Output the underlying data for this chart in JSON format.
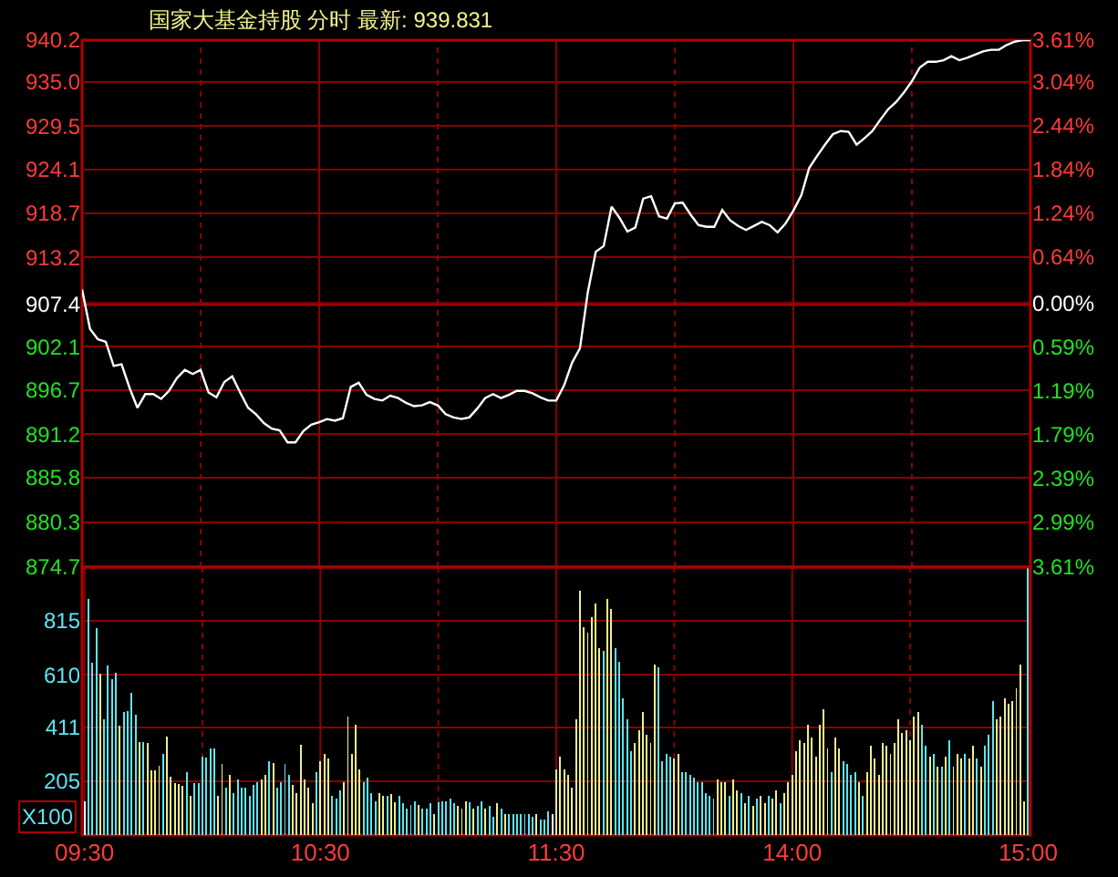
{
  "chart_data": [
    {
      "type": "line",
      "title": "国家大基金持股 分时 最新: 939.831",
      "color": "#ffffff",
      "categories": [
        null,
        null,
        null,
        null,
        null,
        null,
        null,
        null,
        null,
        null,
        null,
        null,
        null,
        null,
        null,
        null,
        null,
        null,
        null,
        null,
        null,
        null,
        null,
        null,
        null,
        null,
        null,
        null,
        null,
        null,
        null,
        null,
        null,
        null,
        null,
        null,
        null,
        null,
        null,
        null,
        null,
        null,
        null,
        null,
        null,
        null,
        null,
        null,
        null,
        null,
        null,
        null,
        null,
        null,
        null,
        null,
        null,
        null,
        null,
        null,
        null,
        null,
        null,
        null,
        null,
        null,
        null,
        null,
        null,
        null,
        null,
        null,
        null,
        null,
        null,
        null,
        null,
        null,
        null,
        null,
        null,
        null,
        null,
        null,
        null,
        null,
        null,
        null,
        null,
        null,
        null,
        null,
        null,
        null,
        null,
        null,
        null,
        null,
        null,
        null,
        null,
        null,
        null,
        null,
        null,
        null,
        null,
        null,
        null,
        null,
        null,
        null,
        null,
        null,
        null,
        null,
        null,
        null,
        null,
        null,
        null
      ],
      "values": [
        909.2,
        904.3,
        903.0,
        902.7,
        899.7,
        899.9,
        897.0,
        894.5,
        896.2,
        896.2,
        895.6,
        896.6,
        898.2,
        899.2,
        898.7,
        899.2,
        896.4,
        895.8,
        897.7,
        898.4,
        896.4,
        894.5,
        893.7,
        892.6,
        891.9,
        891.7,
        890.2,
        890.2,
        891.6,
        892.4,
        892.7,
        893.1,
        892.9,
        893.2,
        897.1,
        897.6,
        896.1,
        895.6,
        895.4,
        896.0,
        895.7,
        895.1,
        894.7,
        894.8,
        895.2,
        894.8,
        893.7,
        893.3,
        893.1,
        893.3,
        894.4,
        895.7,
        896.2,
        895.7,
        896.1,
        896.6,
        896.6,
        896.3,
        895.8,
        895.4,
        895.4,
        897.3,
        900.1,
        901.9,
        908.9,
        913.9,
        914.6,
        919.5,
        918.1,
        916.4,
        916.9,
        920.5,
        920.8,
        918.3,
        918.0,
        919.9,
        920.0,
        918.5,
        917.2,
        917.0,
        917.0,
        919.1,
        917.8,
        917.1,
        916.6,
        917.1,
        917.6,
        917.2,
        916.3,
        917.4,
        919.0,
        920.9,
        924.3,
        925.8,
        927.2,
        928.5,
        928.9,
        928.8,
        927.2,
        928.0,
        928.9,
        930.3,
        931.6,
        932.5,
        933.7,
        935.1,
        936.8,
        937.5,
        937.5,
        937.7,
        938.2,
        937.7,
        938.0,
        938.4,
        938.8,
        939.0,
        939.0,
        939.6,
        940.0,
        940.2,
        940.2
      ],
      "ylim": [
        874.7,
        940.2
      ],
      "yticks": [
        {
          "value": 874.7,
          "label": "874.7"
        },
        {
          "value": 880.3,
          "label": "880.3"
        },
        {
          "value": 885.8,
          "label": "885.8"
        },
        {
          "value": 891.2,
          "label": "891.2"
        },
        {
          "value": 896.7,
          "label": "896.7"
        },
        {
          "value": 902.1,
          "label": "902.1"
        },
        {
          "value": 907.4,
          "label": "907.4"
        },
        {
          "value": 913.2,
          "label": "913.2"
        },
        {
          "value": 918.7,
          "label": "918.7"
        },
        {
          "value": 924.1,
          "label": "924.1"
        },
        {
          "value": 929.5,
          "label": "929.5"
        },
        {
          "value": 935.0,
          "label": "935.0"
        },
        {
          "value": 940.2,
          "label": "940.2"
        }
      ],
      "y2lim": [
        -3.61,
        3.61
      ],
      "y2ticks": [
        {
          "value": -3.61,
          "label": "3.61%"
        },
        {
          "value": -2.99,
          "label": "2.99%"
        },
        {
          "value": -2.39,
          "label": "2.39%"
        },
        {
          "value": -1.79,
          "label": "1.79%"
        },
        {
          "value": -1.19,
          "label": "1.19%"
        },
        {
          "value": -0.59,
          "label": "0.59%"
        },
        {
          "value": 0,
          "label": "0.00%"
        },
        {
          "value": 0.64,
          "label": "0.64%"
        },
        {
          "value": 1.24,
          "label": "1.24%"
        },
        {
          "value": 1.84,
          "label": "1.84%"
        },
        {
          "value": 2.44,
          "label": "2.44%"
        },
        {
          "value": 3.04,
          "label": "3.04%"
        },
        {
          "value": 3.61,
          "label": "3.61%"
        }
      ],
      "ref_lines": [
        {
          "axis": "y",
          "value": 907.4,
          "color": "#b00000"
        }
      ],
      "grid": true,
      "tick_labels": "y"
    },
    {
      "type": "bar",
      "ylabel": "X100",
      "categories": [
        "09:30",
        null,
        null,
        null,
        null,
        null,
        null,
        null,
        null,
        null,
        null,
        null,
        null,
        null,
        null,
        null,
        null,
        null,
        null,
        null,
        null,
        null,
        null,
        null,
        null,
        null,
        null,
        null,
        null,
        null,
        null,
        null,
        null,
        null,
        null,
        null,
        null,
        null,
        null,
        null,
        null,
        null,
        null,
        null,
        null,
        null,
        null,
        null,
        null,
        null,
        null,
        null,
        null,
        null,
        null,
        null,
        null,
        null,
        null,
        null,
        "10:30",
        null,
        null,
        null,
        null,
        null,
        null,
        null,
        null,
        null,
        null,
        null,
        null,
        null,
        null,
        null,
        null,
        null,
        null,
        null,
        null,
        null,
        null,
        null,
        null,
        null,
        null,
        null,
        null,
        null,
        null,
        null,
        null,
        null,
        null,
        null,
        null,
        null,
        null,
        null,
        null,
        null,
        null,
        null,
        null,
        null,
        null,
        null,
        null,
        null,
        null,
        null,
        null,
        null,
        null,
        null,
        null,
        null,
        null,
        null,
        "11:30",
        null,
        null,
        null,
        null,
        null,
        null,
        null,
        null,
        null,
        null,
        null,
        null,
        null,
        null,
        null,
        null,
        null,
        null,
        null,
        null,
        null,
        null,
        null,
        null,
        null,
        null,
        null,
        null,
        null,
        null,
        null,
        null,
        null,
        null,
        null,
        null,
        null,
        null,
        null,
        null,
        null,
        null,
        null,
        null,
        null,
        null,
        null,
        null,
        null,
        null,
        null,
        null,
        null,
        null,
        null,
        null,
        null,
        null,
        null,
        "14:00",
        null,
        null,
        null,
        null,
        null,
        null,
        null,
        null,
        null,
        null,
        null,
        null,
        null,
        null,
        null,
        null,
        null,
        null,
        null,
        null,
        null,
        null,
        null,
        null,
        null,
        null,
        null,
        null,
        null,
        null,
        null,
        null,
        null,
        null,
        null,
        null,
        null,
        null,
        null,
        null,
        null,
        null,
        null,
        null,
        null,
        null,
        null,
        null,
        null,
        null,
        null,
        null,
        null,
        null,
        null,
        null,
        null,
        null,
        null,
        "15:00"
      ],
      "values": [
        130,
        900,
        655,
        786,
        615,
        440,
        647,
        595,
        617,
        418,
        467,
        472,
        540,
        459,
        355,
        355,
        352,
        248,
        248,
        262,
        308,
        374,
        221,
        199,
        194,
        186,
        238,
        150,
        199,
        199,
        300,
        296,
        330,
        330,
        150,
        270,
        180,
        230,
        160,
        210,
        180,
        180,
        150,
        190,
        200,
        210,
        230,
        280,
        275,
        180,
        200,
        270,
        230,
        190,
        160,
        345,
        210,
        180,
        120,
        240,
        280,
        310,
        290,
        150,
        140,
        170,
        200,
        450,
        310,
        420,
        250,
        200,
        220,
        160,
        130,
        160,
        150,
        150,
        155,
        125,
        150,
        120,
        100,
        115,
        130,
        115,
        100,
        100,
        120,
        80,
        125,
        130,
        130,
        140,
        120,
        110,
        100,
        130,
        125,
        100,
        110,
        130,
        100,
        110,
        70,
        120,
        100,
        80,
        80,
        80,
        80,
        80,
        80,
        80,
        70,
        80,
        60,
        60,
        90,
        80,
        250,
        300,
        250,
        230,
        180,
        440,
        930,
        790,
        770,
        830,
        880,
        710,
        700,
        900,
        860,
        710,
        660,
        520,
        440,
        320,
        350,
        400,
        470,
        380,
        350,
        650,
        640,
        280,
        310,
        300,
        290,
        310,
        240,
        240,
        230,
        220,
        200,
        200,
        160,
        150,
        140,
        210,
        200,
        200,
        150,
        210,
        170,
        160,
        120,
        150,
        110,
        140,
        150,
        120,
        150,
        140,
        170,
        120,
        160,
        200,
        230,
        320,
        360,
        350,
        420,
        370,
        300,
        420,
        480,
        330,
        240,
        370,
        330,
        280,
        270,
        230,
        240,
        200,
        150,
        240,
        340,
        290,
        230,
        350,
        340,
        310,
        350,
        440,
        390,
        400,
        360,
        450,
        470,
        420,
        340,
        300,
        310,
        260,
        260,
        300,
        360,
        260,
        310,
        290,
        310,
        290,
        340,
        290,
        260,
        340,
        380,
        510,
        440,
        450,
        520,
        500,
        510,
        560,
        650,
        130,
        1020
      ],
      "colors": [
        "#ffffff",
        "#5ce6f0",
        "#5ce6f0",
        "#5ce6f0",
        "#f0f08c",
        "#5ce6f0",
        "#5ce6f0",
        "#5ce6f0",
        "#5ce6f0",
        "#f0f08c",
        "#5ce6f0",
        "#5ce6f0",
        "#5ce6f0",
        "#5ce6f0",
        "#f0f08c",
        "#5ce6f0",
        "#f0f08c",
        "#f0f08c",
        "#f0f08c",
        "#f0f08c",
        "#5ce6f0",
        "#f0f08c",
        "#f0f08c",
        "#f0f08c",
        "#f0f08c",
        "#f0f08c",
        "#5ce6f0",
        "#f0f08c",
        "#5ce6f0",
        "#5ce6f0",
        "#5ce6f0",
        "#5ce6f0",
        "#5ce6f0",
        "#5ce6f0",
        "#f0f08c",
        "#f0f08c",
        "#5ce6f0",
        "#f0f08c",
        "#5ce6f0",
        "#5ce6f0",
        "#5ce6f0",
        "#5ce6f0",
        "#5ce6f0",
        "#5ce6f0",
        "#5ce6f0",
        "#f0f08c",
        "#f0f08c",
        "#5ce6f0",
        "#f0f08c",
        "#5ce6f0",
        "#5ce6f0",
        "#5ce6f0",
        "#5ce6f0",
        "#f0f08c",
        "#f0f08c",
        "#f0f08c",
        "#f0f08c",
        "#f0f08c",
        "#f0f08c",
        "#5ce6f0",
        "#f0f08c",
        "#f0f08c",
        "#f0f08c",
        "#5ce6f0",
        "#5ce6f0",
        "#5ce6f0",
        "#f0f08c",
        "#f0f08c",
        "#f0f08c",
        "#f0f08c",
        "#f0f08c",
        "#5ce6f0",
        "#5ce6f0",
        "#5ce6f0",
        "#5ce6f0",
        "#f0f08c",
        "#f0f08c",
        "#5ce6f0",
        "#f0f08c",
        "#f0f08c",
        "#5ce6f0",
        "#5ce6f0",
        "#5ce6f0",
        "#5ce6f0",
        "#5ce6f0",
        "#f0f08c",
        "#5ce6f0",
        "#5ce6f0",
        "#5ce6f0",
        "#f0f08c",
        "#5ce6f0",
        "#5ce6f0",
        "#5ce6f0",
        "#5ce6f0",
        "#5ce6f0",
        "#f0f08c",
        "#f0f08c",
        "#f0f08c",
        "#5ce6f0",
        "#f0f08c",
        "#5ce6f0",
        "#5ce6f0",
        "#f0f08c",
        "#5ce6f0",
        "#5ce6f0",
        "#f0f08c",
        "#5ce6f0",
        "#f0f08c",
        "#5ce6f0",
        "#5ce6f0",
        "#5ce6f0",
        "#5ce6f0",
        "#5ce6f0",
        "#5ce6f0",
        "#5ce6f0",
        "#f0f08c",
        "#5ce6f0",
        "#5ce6f0",
        "#5ce6f0",
        "#ffffff",
        "#f0f08c",
        "#f0f08c",
        "#f0f08c",
        "#f0f08c",
        "#f0f08c",
        "#f0f08c",
        "#f0f08c",
        "#f0f08c",
        "#f0f08c",
        "#f0f08c",
        "#f0f08c",
        "#f0f08c",
        "#5ce6f0",
        "#f0f08c",
        "#f0f08c",
        "#5ce6f0",
        "#5ce6f0",
        "#5ce6f0",
        "#5ce6f0",
        "#5ce6f0",
        "#f0f08c",
        "#f0f08c",
        "#f0f08c",
        "#f0f08c",
        "#f0f08c",
        "#f0f08c",
        "#5ce6f0",
        "#5ce6f0",
        "#5ce6f0",
        "#5ce6f0",
        "#f0f08c",
        "#f0f08c",
        "#5ce6f0",
        "#5ce6f0",
        "#5ce6f0",
        "#5ce6f0",
        "#5ce6f0",
        "#5ce6f0",
        "#5ce6f0",
        "#5ce6f0",
        "#5ce6f0",
        "#f0f08c",
        "#f0f08c",
        "#f0f08c",
        "#5ce6f0",
        "#f0f08c",
        "#f0f08c",
        "#5ce6f0",
        "#f0f08c",
        "#5ce6f0",
        "#f0f08c",
        "#5ce6f0",
        "#f0f08c",
        "#f0f08c",
        "#5ce6f0",
        "#f0f08c",
        "#f0f08c",
        "#5ce6f0",
        "#f0f08c",
        "#f0f08c",
        "#f0f08c",
        "#f0f08c",
        "#f0f08c",
        "#f0f08c",
        "#f0f08c",
        "#f0f08c",
        "#f0f08c",
        "#f0f08c",
        "#f0f08c",
        "#f0f08c",
        "#5ce6f0",
        "#f0f08c",
        "#f0f08c",
        "#5ce6f0",
        "#5ce6f0",
        "#5ce6f0",
        "#5ce6f0",
        "#f0f08c",
        "#5ce6f0",
        "#f0f08c",
        "#f0f08c",
        "#f0f08c",
        "#f0f08c",
        "#f0f08c",
        "#f0f08c",
        "#f0f08c",
        "#f0f08c",
        "#f0f08c",
        "#f0f08c",
        "#f0f08c",
        "#f0f08c",
        "#f0f08c",
        "#f0f08c",
        "#5ce6f0",
        "#5ce6f0",
        "#f0f08c",
        "#5ce6f0",
        "#f0f08c",
        "#5ce6f0",
        "#f0f08c",
        "#5ce6f0",
        "#f0f08c",
        "#f0f08c",
        "#f0f08c",
        "#5ce6f0",
        "#f0f08c",
        "#f0f08c",
        "#5ce6f0",
        "#f0f08c",
        "#5ce6f0",
        "#5ce6f0",
        "#5ce6f0",
        "#f0f08c",
        "#f0f08c",
        "#f0f08c",
        "#f0f08c",
        "#f0f08c",
        "#f0f08c",
        "#f0f08c",
        "#f0f08c",
        "#5ce6f0"
      ],
      "ylim": [
        0,
        1020
      ],
      "yticks": [
        205,
        411,
        610,
        815
      ],
      "grid": true
    }
  ]
}
